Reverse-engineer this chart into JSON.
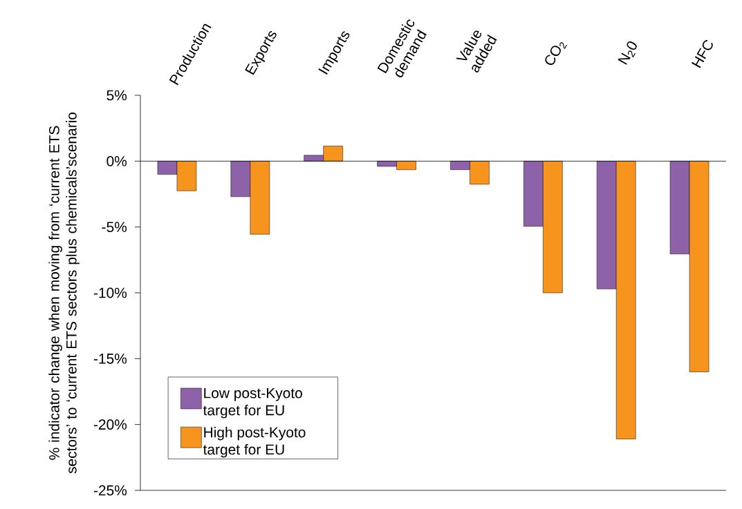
{
  "chart_data": {
    "type": "bar",
    "categories": [
      "Production",
      "Exports",
      "Imports",
      "Domestic demand",
      "Value added",
      "CO$_{2}$",
      "N$_{2}$0",
      "HFC"
    ],
    "ylabel": "% indicator change when moving from ‘current ETS sectors’ to ‘current ETS sectors plus chemicals’scenario",
    "series": [
      {
        "name": "Low post-Kyoto target for EU",
        "color": "#8e62a8",
        "values": [
          -1.0,
          -2.7,
          0.45,
          -0.4,
          -0.65,
          -4.95,
          -9.7,
          -7.05
        ]
      },
      {
        "name": "High post-Kyoto target for EU",
        "color": "#f7941d",
        "values": [
          -2.25,
          -5.55,
          1.15,
          -0.65,
          -1.75,
          -10.0,
          -21.1,
          -16.0
        ]
      }
    ],
    "ylim": [
      -25,
      5
    ],
    "yticks": [
      {
        "value": -25,
        "label": "-25%"
      },
      {
        "value": -20,
        "label": "-20%"
      },
      {
        "value": -15,
        "label": "-15%"
      },
      {
        "value": -10,
        "label": "-10%"
      },
      {
        "value": -5,
        "label": "-5%"
      },
      {
        "value": 0,
        "label": "0%"
      },
      {
        "value": 5,
        "label": "5%"
      }
    ],
    "ref_lines": [
      {
        "axis": "y",
        "value": 0
      }
    ],
    "legend": "bottom left",
    "grid": false
  }
}
